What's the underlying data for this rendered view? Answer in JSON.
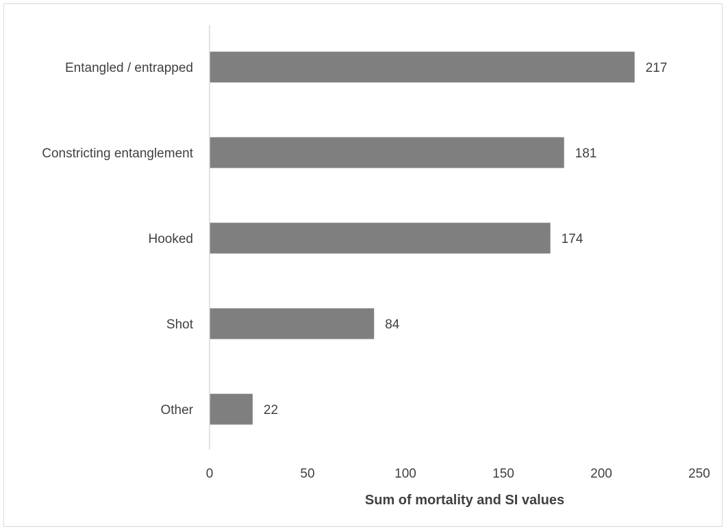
{
  "chart_data": {
    "type": "bar",
    "orientation": "horizontal",
    "categories": [
      "Entangled / entrapped",
      "Constricting entanglement",
      "Hooked",
      "Shot",
      "Other"
    ],
    "values": [
      217,
      181,
      174,
      84,
      22
    ],
    "data_labels": [
      "217",
      "181",
      "174",
      "84",
      "22"
    ],
    "xlabel": "Sum of mortality and SI values",
    "ylabel": "",
    "xlim": [
      0,
      250
    ],
    "x_ticks": [
      "0",
      "50",
      "100",
      "150",
      "200",
      "250"
    ],
    "grid": false,
    "legend": "none",
    "bar_color": "#7f7f7f",
    "axis_color": "#d9d9d9",
    "text_color": "#404040"
  }
}
